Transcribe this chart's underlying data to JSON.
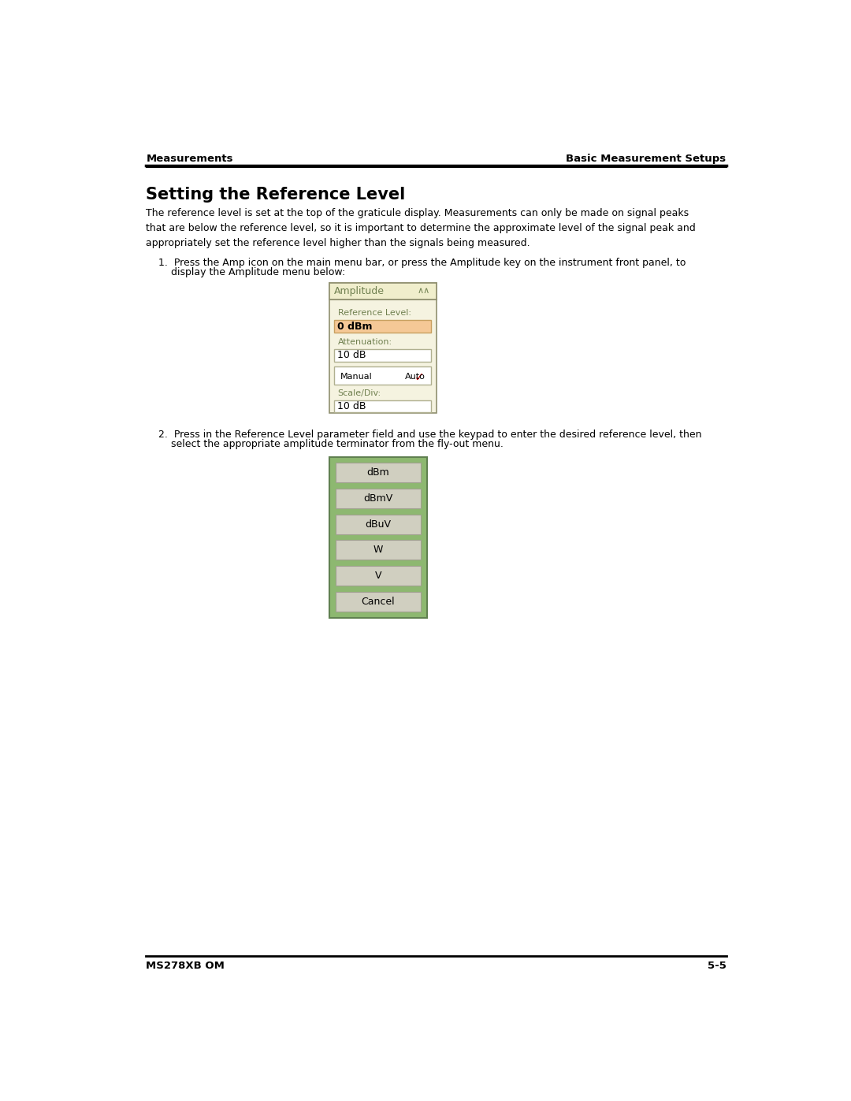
{
  "header_left": "Measurements",
  "header_right": "Basic Measurement Setups",
  "title": "Setting the Reference Level",
  "body_text_1": "The reference level is set at the top of the graticule display. Measurements can only be made on signal peaks\nthat are below the reference level, so it is important to determine the approximate level of the signal peak and\nappropriately set the reference level higher than the signals being measured.",
  "step1_line1": "1.  Press the Amp icon on the main menu bar, or press the Amplitude key on the instrument front panel, to",
  "step1_line2": "    display the Amplitude menu below:",
  "step2_line1": "2.  Press in the Reference Level parameter field and use the keypad to enter the desired reference level, then",
  "step2_line2": "    select the appropriate amplitude terminator from the fly-out menu.",
  "amplitude_panel": {
    "title": "Amplitude",
    "title_bg": "#f0eecc",
    "panel_bg": "#f5f3e0",
    "ref_label": "Reference Level:",
    "ref_value": "0 dBm",
    "ref_value_bg": "#f5c896",
    "atten_label": "Attenuation:",
    "atten_value": "10 dB",
    "field_bg": "#ffffff",
    "field_border": "#b0b090",
    "manual_text": "Manual",
    "auto_text": "Auto",
    "scale_label": "Scale/Div:",
    "scale_value": "10 dB",
    "border_color": "#909070",
    "label_color": "#708050"
  },
  "flyout_panel": {
    "bg": "#8db870",
    "button_bg": "#d0cfc0",
    "button_border": "#a0a090",
    "buttons": [
      "dBm",
      "dBmV",
      "dBuV",
      "W",
      "V",
      "Cancel"
    ]
  },
  "footer_left": "MS278XB OM",
  "footer_right": "5-5",
  "bg_color": "#ffffff",
  "text_color": "#000000",
  "line_color": "#000000"
}
